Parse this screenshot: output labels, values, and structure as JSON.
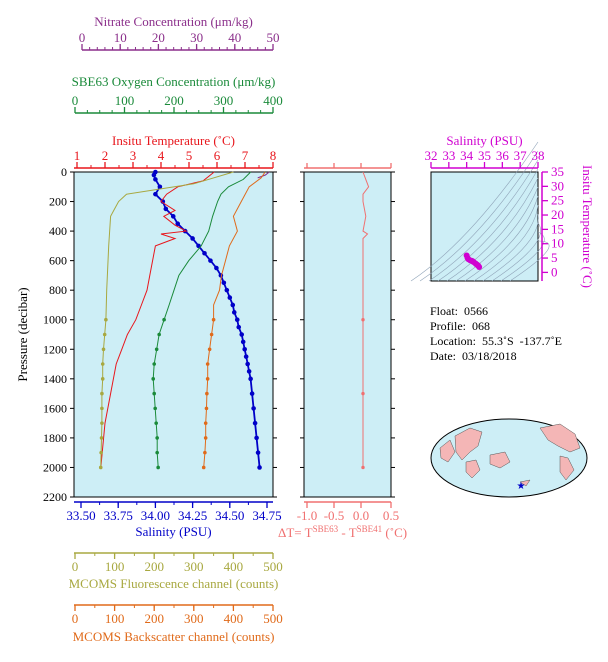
{
  "colors": {
    "nitrate": "#8b2f8b",
    "oxygen": "#1a8a3a",
    "temperature": "#e8161c",
    "salinity": "#0000c8",
    "fluorescence": "#a8a840",
    "backscatter": "#e06a1a",
    "delta_t": "#f07070",
    "ts_axis": "#d000d0",
    "plot_bg": "#cdeef6",
    "land": "#f4b6b6"
  },
  "axes": {
    "nitrate": {
      "title": "Nitrate Concentration (μm/kg)",
      "ticks": [
        "0",
        "10",
        "20",
        "30",
        "40",
        "50"
      ]
    },
    "oxygen": {
      "title": "SBE63 Oxygen Concentration (μm/kg)",
      "ticks": [
        "0",
        "100",
        "200",
        "300",
        "400"
      ]
    },
    "temperature": {
      "title": "Insitu Temperature (˚C)",
      "ticks": [
        "1",
        "2",
        "3",
        "4",
        "5",
        "6",
        "7",
        "8"
      ]
    },
    "pressure": {
      "title": "Pressure (decibar)",
      "ticks": [
        "0",
        "200",
        "400",
        "600",
        "800",
        "1000",
        "1200",
        "1400",
        "1600",
        "1800",
        "2000",
        "2200"
      ]
    },
    "salinity": {
      "title": "Salinity (PSU)",
      "ticks": [
        "33.50",
        "33.75",
        "34.00",
        "34.25",
        "34.50",
        "34.75"
      ]
    },
    "delta": {
      "ticks": [
        "-1.0",
        "-0.5",
        "0.0",
        "0.5"
      ],
      "label_prefix": "ΔT= T",
      "sup1": "SBE63",
      "label_mid": " - T",
      "sup2": "SBE41",
      "label_unit": " (˚C)"
    },
    "fluorescence": {
      "title": "MCOMS Fluorescence channel (counts)",
      "ticks": [
        "0",
        "100",
        "200",
        "300",
        "400",
        "500"
      ]
    },
    "backscatter": {
      "title": "MCOMS Backscatter channel (counts)",
      "ticks": [
        "0",
        "100",
        "200",
        "300",
        "400",
        "500"
      ]
    },
    "ts_salinity": {
      "title": "Salinity (PSU)",
      "ticks": [
        "32",
        "33",
        "34",
        "35",
        "36",
        "37",
        "38"
      ]
    },
    "ts_temperature": {
      "title": "Insitu Temperature (˚C)",
      "ticks": [
        "0",
        "5",
        "10",
        "15",
        "20",
        "25",
        "30",
        "35"
      ]
    }
  },
  "info": {
    "float": "Float:  0566",
    "profile": "Profile:  068",
    "location": "Location:  55.3˚S  -137.7˚E",
    "date": "Date:  03/18/2018"
  },
  "chart_data": [
    {
      "type": "line",
      "name": "profile",
      "ylabel": "Pressure (decibar)",
      "ylim": [
        2200,
        0
      ],
      "series": [
        {
          "name": "Salinity",
          "unit": "PSU",
          "xlim": [
            33.5,
            34.75
          ],
          "points": [
            [
              34.0,
              0
            ],
            [
              33.99,
              20
            ],
            [
              34.0,
              50
            ],
            [
              34.03,
              100
            ],
            [
              34.0,
              150
            ],
            [
              34.05,
              200
            ],
            [
              34.07,
              250
            ],
            [
              34.12,
              300
            ],
            [
              34.15,
              350
            ],
            [
              34.2,
              400
            ],
            [
              34.25,
              450
            ],
            [
              34.29,
              500
            ],
            [
              34.33,
              550
            ],
            [
              34.37,
              600
            ],
            [
              34.41,
              650
            ],
            [
              34.44,
              700
            ],
            [
              34.46,
              750
            ],
            [
              34.48,
              800
            ],
            [
              34.5,
              850
            ],
            [
              34.52,
              900
            ],
            [
              34.53,
              950
            ],
            [
              34.55,
              1000
            ],
            [
              34.56,
              1050
            ],
            [
              34.58,
              1100
            ],
            [
              34.59,
              1150
            ],
            [
              34.6,
              1200
            ],
            [
              34.61,
              1250
            ],
            [
              34.62,
              1300
            ],
            [
              34.63,
              1350
            ],
            [
              34.64,
              1400
            ],
            [
              34.65,
              1500
            ],
            [
              34.66,
              1600
            ],
            [
              34.67,
              1700
            ],
            [
              34.68,
              1800
            ],
            [
              34.69,
              1900
            ],
            [
              34.7,
              2000
            ]
          ]
        },
        {
          "name": "Insitu Temperature",
          "unit": "˚C",
          "xlim": [
            1,
            8
          ],
          "points": [
            [
              5.9,
              0
            ],
            [
              5.5,
              60
            ],
            [
              4.6,
              100
            ],
            [
              4.2,
              150
            ],
            [
              4.0,
              200
            ],
            [
              4.5,
              260
            ],
            [
              4.1,
              300
            ],
            [
              4.5,
              360
            ],
            [
              4.9,
              400
            ],
            [
              4.0,
              420
            ],
            [
              4.5,
              450
            ],
            [
              3.8,
              500
            ],
            [
              3.7,
              600
            ],
            [
              3.6,
              700
            ],
            [
              3.5,
              800
            ],
            [
              3.3,
              900
            ],
            [
              3.1,
              1000
            ],
            [
              2.8,
              1100
            ],
            [
              2.6,
              1200
            ],
            [
              2.4,
              1300
            ],
            [
              2.3,
              1400
            ],
            [
              2.2,
              1500
            ],
            [
              2.1,
              1600
            ],
            [
              2.0,
              1700
            ],
            [
              1.95,
              1800
            ],
            [
              1.9,
              1900
            ],
            [
              1.85,
              2000
            ]
          ]
        },
        {
          "name": "Nitrate",
          "unit": "μm/kg",
          "xlim": [
            0,
            50
          ],
          "points": [
            [
              49,
              0
            ],
            [
              48,
              20
            ],
            [
              46,
              40
            ]
          ]
        },
        {
          "name": "SBE63 Oxygen",
          "unit": "μm/kg",
          "xlim": [
            0,
            400
          ],
          "points": [
            [
              355,
              0
            ],
            [
              340,
              50
            ],
            [
              310,
              100
            ],
            [
              295,
              150
            ],
            [
              288,
              200
            ],
            [
              278,
              300
            ],
            [
              270,
              400
            ],
            [
              255,
              500
            ],
            [
              230,
              600
            ],
            [
              210,
              700
            ],
            [
              200,
              800
            ],
            [
              190,
              900
            ],
            [
              180,
              1000
            ],
            [
              170,
              1100
            ],
            [
              165,
              1200
            ],
            [
              160,
              1300
            ],
            [
              158,
              1400
            ],
            [
              160,
              1500
            ],
            [
              162,
              1600
            ],
            [
              164,
              1700
            ],
            [
              166,
              1800
            ],
            [
              166,
              1900
            ],
            [
              168,
              2000
            ]
          ]
        },
        {
          "name": "MCOMS Fluorescence",
          "unit": "counts",
          "xlim": [
            0,
            500
          ],
          "points": [
            [
              400,
              0
            ],
            [
              300,
              80
            ],
            [
              130,
              150
            ],
            [
              110,
              200
            ],
            [
              100,
              250
            ],
            [
              90,
              300
            ],
            [
              85,
              500
            ],
            [
              80,
              800
            ],
            [
              78,
              1000
            ],
            [
              75,
              1100
            ],
            [
              72,
              1200
            ],
            [
              70,
              1300
            ],
            [
              70,
              1400
            ],
            [
              68,
              1500
            ],
            [
              68,
              1600
            ],
            [
              68,
              1700
            ],
            [
              67,
              1800
            ],
            [
              66,
              1900
            ],
            [
              65,
              2000
            ]
          ]
        },
        {
          "name": "MCOMS Backscatter",
          "unit": "counts",
          "xlim": [
            0,
            500
          ],
          "points": [
            [
              480,
              0
            ],
            [
              470,
              40
            ],
            [
              440,
              100
            ],
            [
              420,
              200
            ],
            [
              400,
              300
            ],
            [
              410,
              400
            ],
            [
              390,
              500
            ],
            [
              380,
              600
            ],
            [
              370,
              700
            ],
            [
              365,
              800
            ],
            [
              350,
              900
            ],
            [
              350,
              1000
            ],
            [
              345,
              1100
            ],
            [
              340,
              1200
            ],
            [
              335,
              1300
            ],
            [
              335,
              1400
            ],
            [
              333,
              1500
            ],
            [
              332,
              1600
            ],
            [
              330,
              1700
            ],
            [
              330,
              1800
            ],
            [
              328,
              1900
            ],
            [
              325,
              2000
            ]
          ]
        }
      ]
    },
    {
      "type": "line",
      "name": "delta_t",
      "xlim": [
        -1.0,
        0.5
      ],
      "ylim": [
        2200,
        0
      ],
      "points": [
        [
          0.0,
          0
        ],
        [
          0.05,
          50
        ],
        [
          0.1,
          100
        ],
        [
          0.0,
          150
        ],
        [
          0.0,
          200
        ],
        [
          0.05,
          300
        ],
        [
          0.0,
          400
        ],
        [
          0.08,
          420
        ],
        [
          0.0,
          450
        ],
        [
          0.0,
          500
        ],
        [
          0.0,
          1000
        ],
        [
          0.0,
          1500
        ],
        [
          0.0,
          2000
        ]
      ]
    },
    {
      "type": "scatter",
      "name": "ts_diagram",
      "xlabel": "Salinity (PSU)",
      "ylabel": "Insitu Temperature (˚C)",
      "xlim": [
        32,
        38
      ],
      "ylim": [
        -3,
        35
      ],
      "points": [
        [
          34.0,
          5.9
        ],
        [
          34.05,
          5.0
        ],
        [
          34.1,
          4.6
        ],
        [
          34.2,
          4.2
        ],
        [
          34.3,
          4.0
        ],
        [
          34.4,
          3.6
        ],
        [
          34.5,
          3.1
        ],
        [
          34.6,
          2.6
        ],
        [
          34.65,
          2.3
        ],
        [
          34.7,
          1.9
        ],
        [
          34.35,
          3.8
        ],
        [
          34.55,
          2.8
        ]
      ]
    }
  ]
}
